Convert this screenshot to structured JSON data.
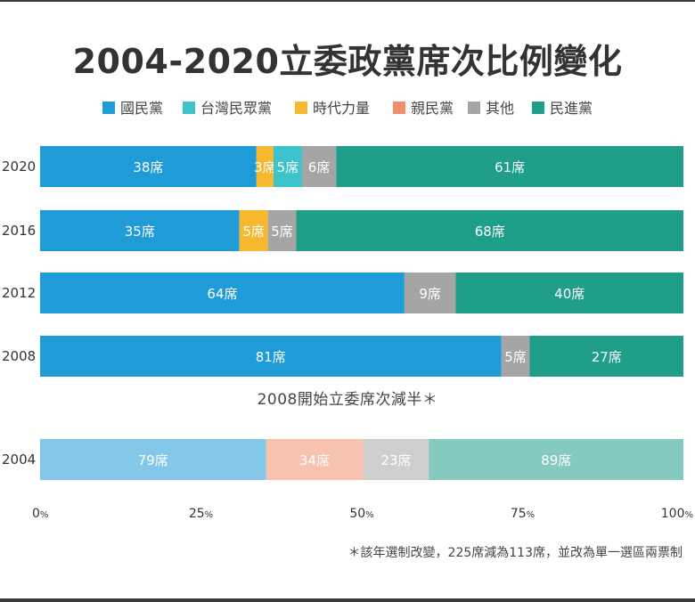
{
  "title": "2004-2020立委政黨席次比例變化",
  "note": "2008開始立委席次減半＊",
  "footnote": "＊該年選制改變，225席減為113席，並改為單一選區兩票制",
  "chart_data": {
    "type": "bar",
    "orientation": "horizontal",
    "stacked": "percent",
    "title": "2004-2020立委政黨席次比例變化",
    "legend_position": "top",
    "grid": false,
    "xlim": [
      0,
      100
    ],
    "x_ticks": [
      "0%",
      "25%",
      "50%",
      "75%",
      "100%"
    ],
    "series": [
      {
        "name": "國民黨",
        "color": "#1f9bd7"
      },
      {
        "name": "台灣民眾黨",
        "color": "#3cc3cc"
      },
      {
        "name": "時代力量",
        "color": "#f5b82e"
      },
      {
        "name": "親民黨",
        "color": "#f08f6e"
      },
      {
        "name": "其他",
        "color": "#a5a5a5"
      },
      {
        "name": "民進黨",
        "color": "#1f9e89"
      }
    ],
    "rows": [
      {
        "year": "2020",
        "total": 113,
        "segments": [
          {
            "party": "國民黨",
            "seats": 38,
            "label": "38席"
          },
          {
            "party": "時代力量",
            "seats": 3,
            "label": "3席"
          },
          {
            "party": "台灣民眾黨",
            "seats": 5,
            "label": "5席"
          },
          {
            "party": "其他",
            "seats": 6,
            "label": "6席"
          },
          {
            "party": "民進黨",
            "seats": 61,
            "label": "61席"
          }
        ]
      },
      {
        "year": "2016",
        "total": 113,
        "segments": [
          {
            "party": "國民黨",
            "seats": 35,
            "label": "35席"
          },
          {
            "party": "時代力量",
            "seats": 5,
            "label": "5席"
          },
          {
            "party": "其他",
            "seats": 5,
            "label": "5席"
          },
          {
            "party": "民進黨",
            "seats": 68,
            "label": "68席"
          }
        ]
      },
      {
        "year": "2012",
        "total": 113,
        "segments": [
          {
            "party": "國民黨",
            "seats": 64,
            "label": "64席"
          },
          {
            "party": "其他",
            "seats": 9,
            "label": "9席"
          },
          {
            "party": "民進黨",
            "seats": 40,
            "label": "40席"
          }
        ]
      },
      {
        "year": "2008",
        "total": 113,
        "segments": [
          {
            "party": "國民黨",
            "seats": 81,
            "label": "81席"
          },
          {
            "party": "其他",
            "seats": 5,
            "label": "5席"
          },
          {
            "party": "民進黨",
            "seats": 27,
            "label": "27席"
          }
        ]
      },
      {
        "year": "2004",
        "total": 225,
        "faded": true,
        "segments": [
          {
            "party": "國民黨",
            "seats": 79,
            "label": "79席"
          },
          {
            "party": "親民黨",
            "seats": 34,
            "label": "34席"
          },
          {
            "party": "其他",
            "seats": 23,
            "label": "23席"
          },
          {
            "party": "民進黨",
            "seats": 89,
            "label": "89席"
          }
        ]
      }
    ]
  }
}
